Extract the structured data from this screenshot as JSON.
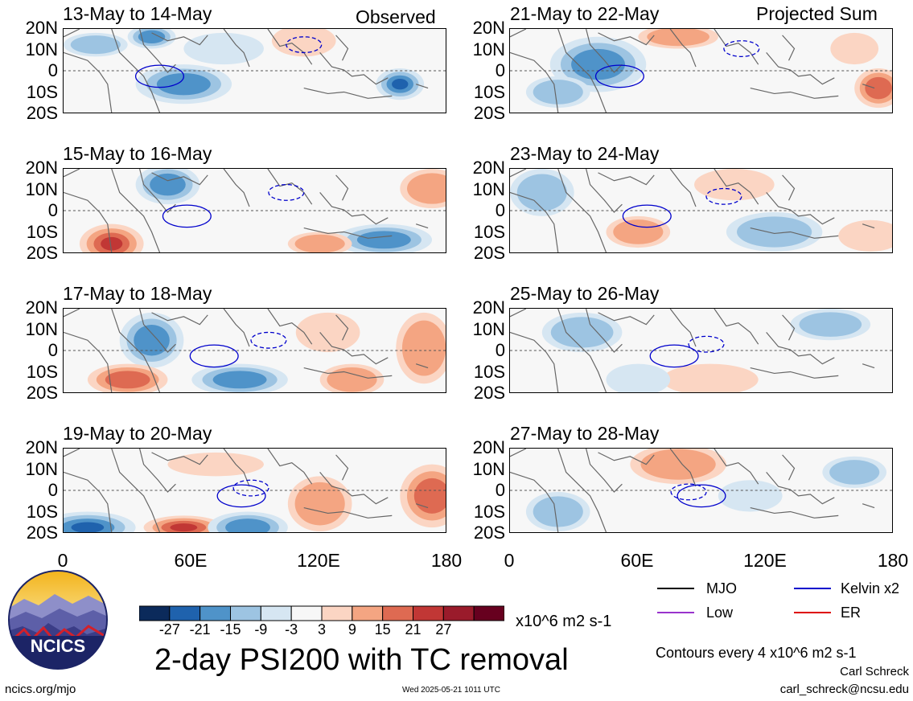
{
  "panels": [
    {
      "title": "13-May to 14-May",
      "tag": "Observed"
    },
    {
      "title": "21-May to 22-May",
      "tag": "Projected Sum"
    },
    {
      "title": "15-May to 16-May",
      "tag": ""
    },
    {
      "title": "23-May to 24-May",
      "tag": ""
    },
    {
      "title": "17-May to 18-May",
      "tag": ""
    },
    {
      "title": "25-May to 26-May",
      "tag": ""
    },
    {
      "title": "19-May to 20-May",
      "tag": ""
    },
    {
      "title": "27-May to 28-May",
      "tag": ""
    }
  ],
  "lat_labels": [
    "20N",
    "10N",
    "0",
    "10S",
    "20S"
  ],
  "lon_labels": [
    "0",
    "60E",
    "120E",
    "180"
  ],
  "legend": {
    "items": [
      {
        "label": "MJO",
        "color": "#000000"
      },
      {
        "label": "Kelvin x2",
        "color": "#0000cc"
      },
      {
        "label": "Low",
        "color": "#9933cc"
      },
      {
        "label": "ER",
        "color": "#dd0000"
      }
    ],
    "contours_note": "Contours every 4 x10^6 m2 s-1"
  },
  "colorbar": {
    "colors": [
      "#0b2a5b",
      "#1f62ad",
      "#4f93c9",
      "#9dc4e2",
      "#d6e6f2",
      "#f7f7f7",
      "#fbd5c3",
      "#f4a582",
      "#de6a52",
      "#c13735",
      "#9a1b2b",
      "#67001f"
    ],
    "tick_labels": [
      "-27",
      "-21",
      "-15",
      "-9",
      "-3",
      "3",
      "9",
      "15",
      "21",
      "27"
    ],
    "units": "x10^6 m2 s-1"
  },
  "chart_data": {
    "type": "heatmap",
    "title": "2-day PSI200 with TC removal",
    "variable": "PSI200",
    "units": "x10^6 m2 s-1",
    "contour_interval": 4,
    "xlim": [
      0,
      180
    ],
    "ylim": [
      -20,
      20
    ],
    "x_ticks": [
      "0",
      "60E",
      "120E",
      "180"
    ],
    "y_ticks": [
      "20N",
      "10N",
      "0",
      "10S",
      "20S"
    ],
    "color_levels": [
      -27,
      -21,
      -15,
      -9,
      -3,
      3,
      9,
      15,
      21,
      27
    ],
    "panel_count": 8
  },
  "logo": {
    "text": "NCICS"
  },
  "footer": {
    "site": "ncics.org/mjo",
    "timestamp": "Wed 2025-05-21 1011 UTC",
    "author": "Carl Schreck",
    "email": "carl_schreck@ncsu.edu"
  }
}
